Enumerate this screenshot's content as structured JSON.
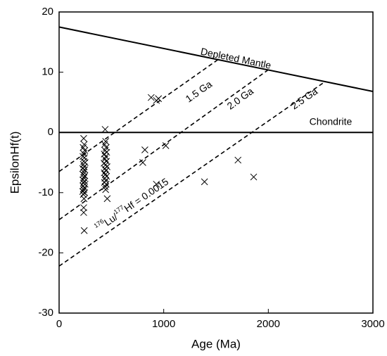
{
  "chart_data": {
    "type": "scatter",
    "x_label": "Age (Ma)",
    "y_label": "EpsilonHf(t)",
    "xlim": [
      0,
      3000
    ],
    "xticks": [
      0,
      1000,
      2000,
      3000
    ],
    "ylim": [
      -30,
      20
    ],
    "yticks": [
      -30,
      -20,
      -10,
      0,
      10,
      20
    ],
    "marker": "x",
    "color": "#000000",
    "series": [
      {
        "x": [
          235,
          240,
          230,
          245,
          235,
          228,
          242,
          236,
          248,
          232,
          240,
          226,
          244,
          236,
          230,
          246,
          238,
          228,
          242,
          234,
          248,
          230,
          240,
          236,
          226,
          244,
          232,
          238,
          235,
          235,
          240,
          440,
          445,
          435,
          450,
          440,
          455,
          432,
          446,
          438,
          452,
          430,
          444,
          458,
          436,
          448,
          432,
          442,
          454,
          438,
          446,
          434,
          450,
          440,
          445,
          460,
          880,
          930,
          950,
          820,
          800,
          1020,
          930,
          1390,
          1710,
          1860
        ],
        "y": [
          -1,
          -2,
          -2.5,
          -3,
          -3.5,
          -4,
          -4.2,
          -4.8,
          -5,
          -5.3,
          -5.7,
          -6,
          -6.2,
          -6.6,
          -7,
          -7.2,
          -7.5,
          -7.9,
          -8.1,
          -8.4,
          -8.6,
          -8.9,
          -9.2,
          -9.5,
          -9.8,
          -10,
          -10.3,
          -11,
          -12.5,
          -13.3,
          -16.3,
          0.5,
          -1.5,
          -2,
          -2.5,
          -3,
          -3.3,
          -3.6,
          -4,
          -4.4,
          -4.8,
          -5.1,
          -5.4,
          -5.7,
          -6,
          -6.3,
          -6.7,
          -7,
          -7.3,
          -7.6,
          -8,
          -8.3,
          -8.6,
          -9,
          -9.5,
          -11,
          5.8,
          5.3,
          5.6,
          -2.9,
          -5,
          -2.2,
          -8.6,
          -8.2,
          -4.6,
          -7.4
        ]
      }
    ],
    "lines": [
      {
        "name": "Depleted Mantle",
        "x": [
          0,
          3000
        ],
        "y": [
          17.5,
          6.8
        ],
        "dashed": false
      },
      {
        "name": "Chondrite",
        "x": [
          0,
          3000
        ],
        "y": [
          0,
          0
        ],
        "dashed": false
      },
      {
        "name": "1.5 Ga",
        "x": [
          0,
          1520
        ],
        "y": [
          -6.5,
          12.1
        ],
        "dashed": true
      },
      {
        "name": "2.0 Ga",
        "x": [
          0,
          2000
        ],
        "y": [
          -14.5,
          10.4
        ],
        "dashed": true
      },
      {
        "name": "2.5 Ga",
        "x": [
          0,
          2540
        ],
        "y": [
          -22.2,
          8.4
        ],
        "dashed": true
      }
    ],
    "annotation": [
      {
        "text": "176",
        "sup": true
      },
      {
        "text": "Lu/",
        "sup": false
      },
      {
        "text": "177",
        "sup": true
      },
      {
        "text": "Hf = 0.0015",
        "sup": false
      }
    ]
  }
}
